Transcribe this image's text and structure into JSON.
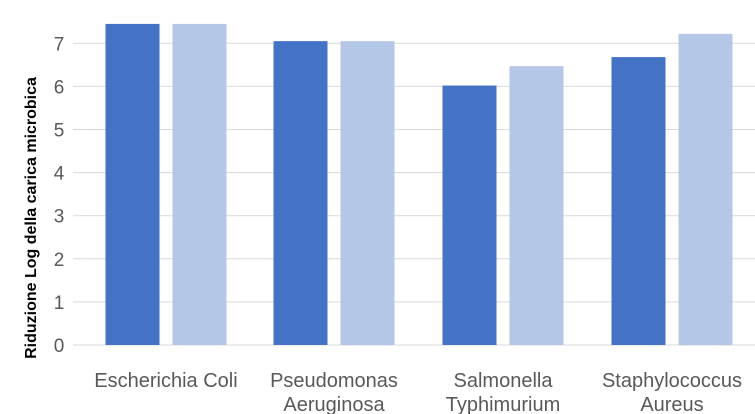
{
  "chart_data": {
    "type": "bar",
    "title": "",
    "xlabel": "",
    "ylabel": "Riduzione Log della carica microbica",
    "categories": [
      [
        "Escherichia Coli"
      ],
      [
        "Pseudomonas",
        "Aeruginosa"
      ],
      [
        "Salmonella",
        "Typhimurium"
      ],
      [
        "Staphylococcus",
        "Aureus"
      ]
    ],
    "series": [
      {
        "values": [
          7.45,
          7.05,
          6.02,
          6.68
        ]
      },
      {
        "values": [
          7.45,
          7.05,
          6.47,
          7.22
        ]
      }
    ],
    "ylim": [
      0,
      7.6
    ],
    "yticks": [
      "0",
      "1",
      "2",
      "3",
      "4",
      "5",
      "6",
      "7"
    ],
    "grid": true,
    "legend": "none",
    "colors": {
      "series": [
        "#4472C4",
        "#B4C7E7"
      ],
      "grid": "#D9D9D9"
    }
  }
}
